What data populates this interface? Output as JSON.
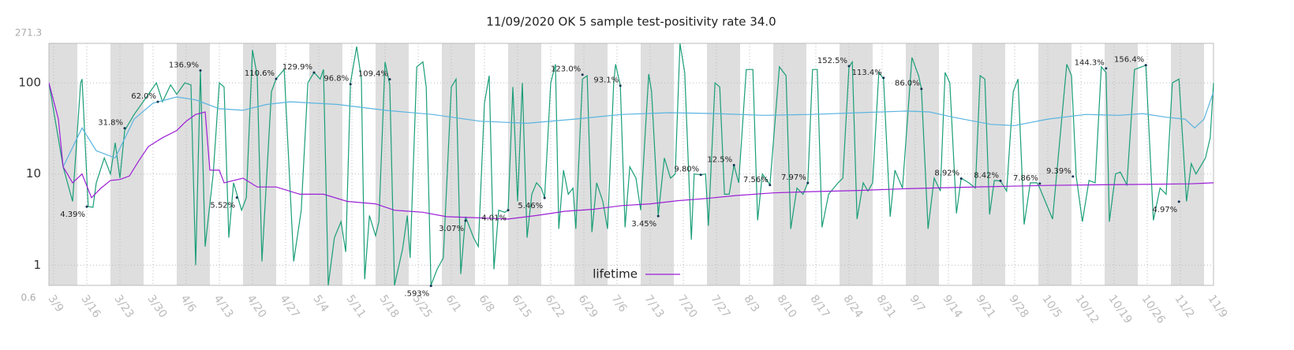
{
  "chart_data": {
    "type": "line",
    "title": "11/09/2020 OK 5 sample test-positivity rate 34.0",
    "log_y": true,
    "grid": true,
    "legend": "bottom-center",
    "xlim": [
      -1,
      245
    ],
    "xticks": [
      {
        "value": 0,
        "label": "3/9"
      },
      {
        "value": 7,
        "label": "3/16"
      },
      {
        "value": 14,
        "label": "3/23"
      },
      {
        "value": 21,
        "label": "3/30"
      },
      {
        "value": 28,
        "label": "4/6"
      },
      {
        "value": 35,
        "label": "4/13"
      },
      {
        "value": 42,
        "label": "4/20"
      },
      {
        "value": 49,
        "label": "4/27"
      },
      {
        "value": 56,
        "label": "5/4"
      },
      {
        "value": 63,
        "label": "5/11"
      },
      {
        "value": 70,
        "label": "5/18"
      },
      {
        "value": 77,
        "label": "5/25"
      },
      {
        "value": 84,
        "label": "6/1"
      },
      {
        "value": 91,
        "label": "6/8"
      },
      {
        "value": 98,
        "label": "6/15"
      },
      {
        "value": 105,
        "label": "6/22"
      },
      {
        "value": 112,
        "label": "6/29"
      },
      {
        "value": 119,
        "label": "7/6"
      },
      {
        "value": 126,
        "label": "7/13"
      },
      {
        "value": 133,
        "label": "7/20"
      },
      {
        "value": 140,
        "label": "7/27"
      },
      {
        "value": 147,
        "label": "8/3"
      },
      {
        "value": 154,
        "label": "8/10"
      },
      {
        "value": 161,
        "label": "8/17"
      },
      {
        "value": 168,
        "label": "8/24"
      },
      {
        "value": 175,
        "label": "8/31"
      },
      {
        "value": 182,
        "label": "9/7"
      },
      {
        "value": 189,
        "label": "9/14"
      },
      {
        "value": 196,
        "label": "9/21"
      },
      {
        "value": 203,
        "label": "9/28"
      },
      {
        "value": 210,
        "label": "10/5"
      },
      {
        "value": 217,
        "label": "10/12"
      },
      {
        "value": 224,
        "label": "10/19"
      },
      {
        "value": 231,
        "label": "10/26"
      },
      {
        "value": 238,
        "label": "11/2"
      },
      {
        "value": 245,
        "label": "11/9"
      }
    ],
    "ylim": [
      0.6,
      271.3
    ],
    "yticks": [
      {
        "value": 0.6,
        "label": "0.6"
      },
      1,
      10,
      100,
      {
        "value": 271.3,
        "label": "271.3"
      }
    ],
    "series": [
      {
        "color": "#1a9e77",
        "x": [
          -1,
          2,
          4,
          5.7,
          6,
          7.3,
          8.3,
          9,
          10.7,
          12,
          13,
          14,
          15,
          17,
          18.7,
          21.7,
          23,
          24.7,
          26,
          27.7,
          29,
          30,
          31,
          32,
          33.7,
          35,
          36,
          37,
          38,
          39.7,
          40.7,
          42,
          43,
          44,
          46,
          47,
          48.7,
          50.7,
          52.3,
          53.7,
          55,
          56.3,
          57,
          58,
          59.3,
          60.7,
          61.7,
          62.7,
          64,
          65,
          65.7,
          66.7,
          68,
          68.7,
          70,
          71,
          72,
          73.7,
          74.7,
          75.3,
          76.7,
          78,
          78.7,
          79.7,
          81,
          82.3,
          84,
          85,
          86,
          87,
          88.7,
          89.7,
          91,
          92,
          93,
          94,
          95.3,
          96,
          97,
          98,
          99,
          100,
          101,
          102,
          103,
          103.7,
          105,
          106,
          106.7,
          107.7,
          108.7,
          109.7,
          110.3,
          111.7,
          112.7,
          113.7,
          114.7,
          116,
          117,
          118.3,
          118.7,
          119.7,
          120.7,
          121.7,
          123,
          124,
          125.7,
          126.3,
          127.7,
          129,
          130.3,
          131.3,
          132.3,
          133.3,
          134.7,
          135.3,
          136.7,
          137.7,
          138.3,
          139.7,
          140.7,
          141.7,
          142.7,
          143.7,
          144.7,
          146.3,
          147.7,
          148.7,
          149.7,
          151.3,
          153.3,
          154.7,
          155.7,
          157,
          158.3,
          159.3,
          160.3,
          161.3,
          162.3,
          163.7,
          165.7,
          166.7,
          168,
          168.7,
          169.7,
          171,
          172,
          173,
          174.3,
          175.3,
          176.7,
          177.7,
          179.3,
          181.3,
          182.7,
          183.3,
          184.7,
          186,
          187.3,
          188.3,
          189.3,
          190.7,
          191.7,
          193.3,
          194.7,
          195.7,
          196.7,
          197.7,
          198.7,
          200,
          201.3,
          202.7,
          203.7,
          205,
          206.3,
          207.7,
          208.3,
          211,
          214,
          215,
          216,
          217.3,
          218.7,
          220,
          221.3,
          222.3,
          223,
          224.3,
          225.3,
          226.7,
          228.3,
          230.7,
          232.3,
          233.7,
          235,
          236.3,
          237.7,
          239.3,
          240.3,
          241.3,
          243.3,
          244.3,
          245
        ],
        "values": [
          100,
          12,
          5,
          100,
          110,
          4.4,
          4.3,
          8,
          15,
          10,
          22,
          9,
          30,
          45,
          60,
          100,
          62,
          95,
          75,
          100,
          95,
          1,
          137,
          1.6,
          10,
          100,
          90,
          2,
          8,
          4,
          5.5,
          230,
          120,
          1.1,
          80,
          111,
          140,
          1.1,
          4,
          100,
          130,
          110,
          140,
          0.6,
          2,
          3,
          1.4,
          100,
          250,
          110,
          0.7,
          3.5,
          2.1,
          3,
          170,
          95,
          0.6,
          1.5,
          3.5,
          1.2,
          150,
          170,
          90,
          0.6,
          0.9,
          1.2,
          90,
          110,
          0.8,
          3.4,
          2,
          1.6,
          60,
          120,
          0.9,
          4,
          3.8,
          4,
          90,
          5,
          100,
          2,
          6,
          8,
          7,
          5.5,
          100,
          160,
          2.5,
          11,
          6,
          7,
          2.5,
          110,
          120,
          2.3,
          8,
          5,
          2.5,
          100,
          160,
          93,
          2.6,
          12,
          9,
          4,
          125,
          80,
          3.5,
          15,
          9,
          10,
          270,
          130,
          1.9,
          10,
          9.8,
          10,
          2.7,
          100,
          90,
          6,
          6,
          12.5,
          8,
          140,
          140,
          3.1,
          10,
          7.6,
          150,
          120,
          2.5,
          7,
          6,
          8,
          140,
          140,
          2.6,
          6,
          8,
          9,
          150,
          170,
          3.2,
          8,
          6.5,
          8,
          130,
          110,
          3.4,
          11,
          7,
          190,
          120,
          86,
          2.5,
          9,
          6.5,
          130,
          100,
          3.7,
          9,
          8,
          7,
          120,
          110,
          3.6,
          8.5,
          8.4,
          6.5,
          80,
          110,
          2.8,
          8,
          8,
          7,
          3.2,
          160,
          120,
          9.4,
          3,
          8.5,
          8,
          150,
          130,
          3,
          10,
          10.5,
          7.6,
          140,
          156,
          3.1,
          7,
          6,
          100,
          110,
          5,
          13,
          10,
          15,
          25,
          100
        ]
      },
      {
        "color": "#5ab4e0",
        "x": [
          2,
          6,
          9,
          13,
          17,
          21,
          26,
          30,
          35,
          40,
          45,
          50,
          60,
          70,
          80,
          90,
          100,
          110,
          120,
          130,
          140,
          150,
          160,
          170,
          180,
          185,
          190,
          198,
          203,
          210,
          218,
          225,
          230,
          235,
          239,
          241,
          243,
          245
        ],
        "values": [
          12,
          32,
          18,
          15,
          40,
          60,
          70,
          65,
          52,
          50,
          58,
          62,
          58,
          50,
          45,
          38,
          36,
          40,
          45,
          47,
          46,
          44,
          45,
          47,
          49,
          48,
          42,
          35,
          34,
          40,
          45,
          44,
          46,
          42,
          40,
          32,
          40,
          80
        ]
      },
      {
        "name": "lifetime",
        "color": "#9b1fd6",
        "x": [
          -1,
          1,
          2,
          4,
          6,
          8,
          10,
          12,
          14,
          16,
          18,
          20,
          23,
          26,
          28,
          30,
          32,
          33,
          35,
          36,
          40,
          43,
          47,
          52,
          57,
          62,
          68,
          72,
          78,
          83,
          90,
          96,
          102,
          108,
          114,
          120,
          126,
          132,
          138,
          144,
          152,
          160,
          170,
          180,
          190,
          200,
          210,
          220,
          230,
          240,
          245
        ],
        "values": [
          100,
          40,
          12,
          8,
          10,
          5.5,
          7,
          8.5,
          8.7,
          9.5,
          14,
          20,
          25,
          30,
          38,
          45,
          48,
          11,
          11,
          8,
          9,
          7.2,
          7.2,
          6,
          6,
          5,
          4.7,
          4,
          3.8,
          3.4,
          3.3,
          3.2,
          3.5,
          3.9,
          4.1,
          4.5,
          4.7,
          5.1,
          5.4,
          5.8,
          6.2,
          6.4,
          6.6,
          6.9,
          7.1,
          7.3,
          7.5,
          7.6,
          7.7,
          7.8,
          8
        ]
      }
    ],
    "annotations": [
      {
        "x": 7,
        "value": 4.39,
        "label": "4.39%"
      },
      {
        "x": 15,
        "value": 31.8,
        "label": "31.8%"
      },
      {
        "x": 22,
        "value": 62.0,
        "label": "62.0%"
      },
      {
        "x": 31,
        "value": 136.9,
        "label": "136.9%"
      },
      {
        "x": 38.7,
        "value": 5.52,
        "label": "5.52%"
      },
      {
        "x": 47,
        "value": 110.6,
        "label": "110.6%"
      },
      {
        "x": 55,
        "value": 129.9,
        "label": "129.9%"
      },
      {
        "x": 62.7,
        "value": 96.8,
        "label": "96.8%"
      },
      {
        "x": 71,
        "value": 109.4,
        "label": "109.4%"
      },
      {
        "x": 79.7,
        "value": 0.593,
        "label": ".593%"
      },
      {
        "x": 87,
        "value": 3.07,
        "label": "3.07%"
      },
      {
        "x": 96,
        "value": 4.01,
        "label": "4.01%"
      },
      {
        "x": 103.7,
        "value": 5.46,
        "label": "5.46%"
      },
      {
        "x": 111.7,
        "value": 123.0,
        "label": "123.0%"
      },
      {
        "x": 119.7,
        "value": 93.1,
        "label": "93.1%"
      },
      {
        "x": 127.7,
        "value": 3.45,
        "label": "3.45%"
      },
      {
        "x": 136.7,
        "value": 9.8,
        "label": "9.80%"
      },
      {
        "x": 143.7,
        "value": 12.5,
        "label": "12.5%"
      },
      {
        "x": 151.3,
        "value": 7.56,
        "label": "7.56%"
      },
      {
        "x": 159.3,
        "value": 7.97,
        "label": "7.97%"
      },
      {
        "x": 168,
        "value": 152.5,
        "label": "152.5%"
      },
      {
        "x": 175.3,
        "value": 113.4,
        "label": "113.4%"
      },
      {
        "x": 183.3,
        "value": 86.0,
        "label": "86.0%"
      },
      {
        "x": 191.7,
        "value": 8.92,
        "label": "8.92%"
      },
      {
        "x": 200,
        "value": 8.42,
        "label": "8.42%"
      },
      {
        "x": 208.3,
        "value": 7.86,
        "label": "7.86%"
      },
      {
        "x": 215.3,
        "value": 9.39,
        "label": "9.39%"
      },
      {
        "x": 222.3,
        "value": 144.3,
        "label": "144.3%"
      },
      {
        "x": 230.7,
        "value": 156.4,
        "label": "156.4%"
      },
      {
        "x": 237.7,
        "value": 4.97,
        "label": "4.97%"
      }
    ]
  }
}
